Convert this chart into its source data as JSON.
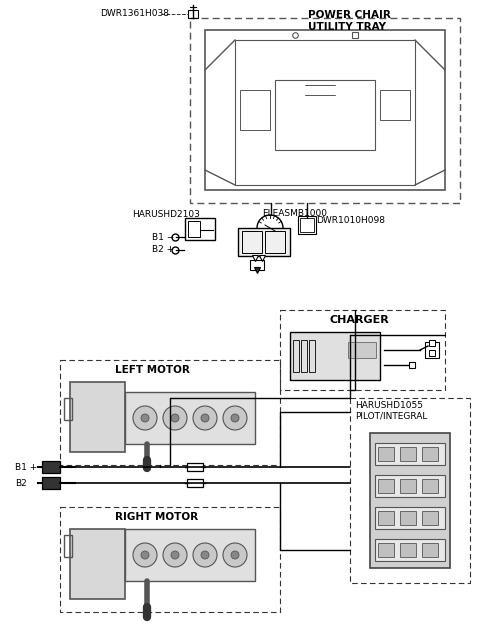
{
  "title": "",
  "bg_color": "#ffffff",
  "line_color": "#000000",
  "dash_color": "#555555",
  "labels": {
    "power_chair_tray": "POWER CHAIR\nUTILITY TRAY",
    "dwr1361h038": "DWR1361H038",
    "harushd2103": "HARUSHD2103",
    "eleasmb1000": "ELEASMB1000",
    "dwr1010h098": "DWR1010H098",
    "b1_minus": "B1 −",
    "b2_plus": "B2 +",
    "b1_plus": "B1 +",
    "b2": "B2",
    "charger": "CHARGER",
    "left_motor": "LEFT MOTOR",
    "right_motor": "RIGHT MOTOR",
    "harushd1055": "HARUSHD1055\nPILOT/INTEGRAL"
  },
  "figsize": [
    5.0,
    6.33
  ],
  "dpi": 100
}
